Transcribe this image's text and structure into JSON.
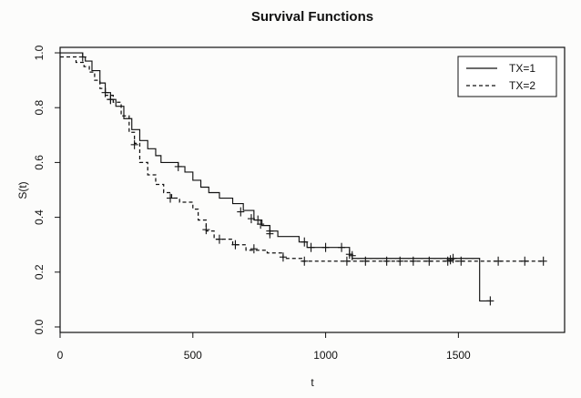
{
  "chart_data": {
    "type": "line",
    "title": "Survival Functions",
    "xlabel": "t",
    "ylabel": "S(t)",
    "xlim": [
      0,
      1900
    ],
    "ylim": [
      -0.02,
      1.02
    ],
    "x_ticks": [
      0,
      500,
      1000,
      1500
    ],
    "y_ticks": [
      0.0,
      0.2,
      0.4,
      0.6,
      0.8,
      1.0
    ],
    "grid": false,
    "legend_position": "top-right",
    "series": [
      {
        "name": "TX=1",
        "line_style": "solid",
        "steps": [
          [
            0,
            1.0
          ],
          [
            85,
            0.985
          ],
          [
            95,
            0.97
          ],
          [
            120,
            0.935
          ],
          [
            150,
            0.89
          ],
          [
            170,
            0.855
          ],
          [
            190,
            0.83
          ],
          [
            210,
            0.805
          ],
          [
            240,
            0.76
          ],
          [
            270,
            0.72
          ],
          [
            300,
            0.68
          ],
          [
            330,
            0.65
          ],
          [
            360,
            0.625
          ],
          [
            380,
            0.6
          ],
          [
            430,
            0.6
          ],
          [
            445,
            0.585
          ],
          [
            470,
            0.565
          ],
          [
            500,
            0.535
          ],
          [
            530,
            0.51
          ],
          [
            560,
            0.49
          ],
          [
            600,
            0.47
          ],
          [
            650,
            0.45
          ],
          [
            690,
            0.425
          ],
          [
            730,
            0.39
          ],
          [
            760,
            0.37
          ],
          [
            790,
            0.35
          ],
          [
            820,
            0.33
          ],
          [
            900,
            0.31
          ],
          [
            930,
            0.29
          ],
          [
            1060,
            0.29
          ],
          [
            1090,
            0.265
          ],
          [
            1100,
            0.25
          ],
          [
            1580,
            0.25
          ],
          [
            1580,
            0.095
          ],
          [
            1620,
            0.095
          ]
        ],
        "censor_marks": [
          [
            85,
            0.985
          ],
          [
            170,
            0.855
          ],
          [
            190,
            0.83
          ],
          [
            445,
            0.585
          ],
          [
            680,
            0.42
          ],
          [
            720,
            0.395
          ],
          [
            745,
            0.39
          ],
          [
            755,
            0.375
          ],
          [
            790,
            0.35
          ],
          [
            790,
            0.34
          ],
          [
            920,
            0.31
          ],
          [
            945,
            0.29
          ],
          [
            1000,
            0.29
          ],
          [
            1060,
            0.29
          ],
          [
            1090,
            0.265
          ],
          [
            1100,
            0.26
          ],
          [
            1620,
            0.095
          ]
        ]
      },
      {
        "name": "TX=2",
        "line_style": "dashed",
        "steps": [
          [
            0,
            0.985
          ],
          [
            30,
            0.985
          ],
          [
            60,
            0.965
          ],
          [
            90,
            0.95
          ],
          [
            110,
            0.93
          ],
          [
            130,
            0.9
          ],
          [
            150,
            0.87
          ],
          [
            170,
            0.845
          ],
          [
            200,
            0.82
          ],
          [
            230,
            0.77
          ],
          [
            260,
            0.71
          ],
          [
            280,
            0.67
          ],
          [
            300,
            0.6
          ],
          [
            330,
            0.555
          ],
          [
            360,
            0.52
          ],
          [
            390,
            0.49
          ],
          [
            420,
            0.47
          ],
          [
            450,
            0.455
          ],
          [
            500,
            0.43
          ],
          [
            520,
            0.39
          ],
          [
            550,
            0.35
          ],
          [
            580,
            0.32
          ],
          [
            650,
            0.3
          ],
          [
            700,
            0.28
          ],
          [
            780,
            0.27
          ],
          [
            840,
            0.25
          ],
          [
            910,
            0.24
          ],
          [
            1820,
            0.24
          ]
        ],
        "censor_marks": [
          [
            190,
            0.83
          ],
          [
            280,
            0.665
          ],
          [
            415,
            0.47
          ],
          [
            550,
            0.355
          ],
          [
            600,
            0.32
          ],
          [
            660,
            0.3
          ],
          [
            730,
            0.285
          ],
          [
            840,
            0.255
          ],
          [
            920,
            0.24
          ],
          [
            1080,
            0.24
          ],
          [
            1150,
            0.24
          ],
          [
            1230,
            0.24
          ],
          [
            1280,
            0.24
          ],
          [
            1330,
            0.24
          ],
          [
            1390,
            0.24
          ],
          [
            1460,
            0.24
          ],
          [
            1470,
            0.245
          ],
          [
            1480,
            0.25
          ],
          [
            1510,
            0.24
          ],
          [
            1650,
            0.24
          ],
          [
            1750,
            0.24
          ],
          [
            1820,
            0.24
          ]
        ]
      }
    ]
  }
}
